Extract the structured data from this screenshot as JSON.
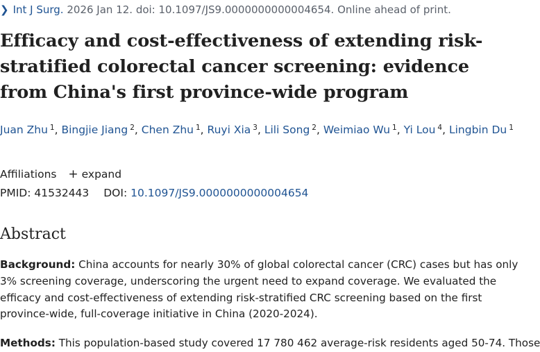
{
  "citation": {
    "journal": "Int J Surg.",
    "details": "2026 Jan 12. doi: 10.1097/JS9.0000000000004654. Online ahead of print."
  },
  "title": "Efficacy and cost-effectiveness of extending risk-stratified colorectal cancer screening: evidence from China's first province-wide program",
  "authors": [
    {
      "name": "Juan Zhu",
      "aff": "1",
      "sep": ","
    },
    {
      "name": "Bingjie Jiang",
      "aff": "2",
      "sep": ","
    },
    {
      "name": "Chen Zhu",
      "aff": "1",
      "sep": ","
    },
    {
      "name": "Ruyi Xia",
      "aff": "3",
      "sep": ","
    },
    {
      "name": "Lili Song",
      "aff": "2",
      "sep": ","
    },
    {
      "name": "Weimiao Wu",
      "aff": "1",
      "sep": ","
    },
    {
      "name": "Yi Lou",
      "aff": "4",
      "sep": ","
    },
    {
      "name": "Lingbin Du",
      "aff": "1",
      "sep": ""
    }
  ],
  "affiliations": {
    "label": "Affiliations",
    "toggle": "expand"
  },
  "ids": {
    "pmid_label": "PMID:",
    "pmid": "41532443",
    "doi_label": "DOI:",
    "doi": "10.1097/JS9.0000000000004654"
  },
  "abstract": {
    "heading": "Abstract",
    "background_label": "Background:",
    "background_text": "China accounts for nearly 30% of global colorectal cancer (CRC) cases but has only 3% screening coverage, underscoring the urgent need to expand coverage. We evaluated the efficacy and cost-effectiveness of extending risk-stratified CRC screening based on the first province-wide, full-coverage initiative in China (2020-2024).",
    "methods_label": "Methods:",
    "methods_text": "This population-based study covered 17 780 462 average-risk residents aged 50-74. Those"
  }
}
